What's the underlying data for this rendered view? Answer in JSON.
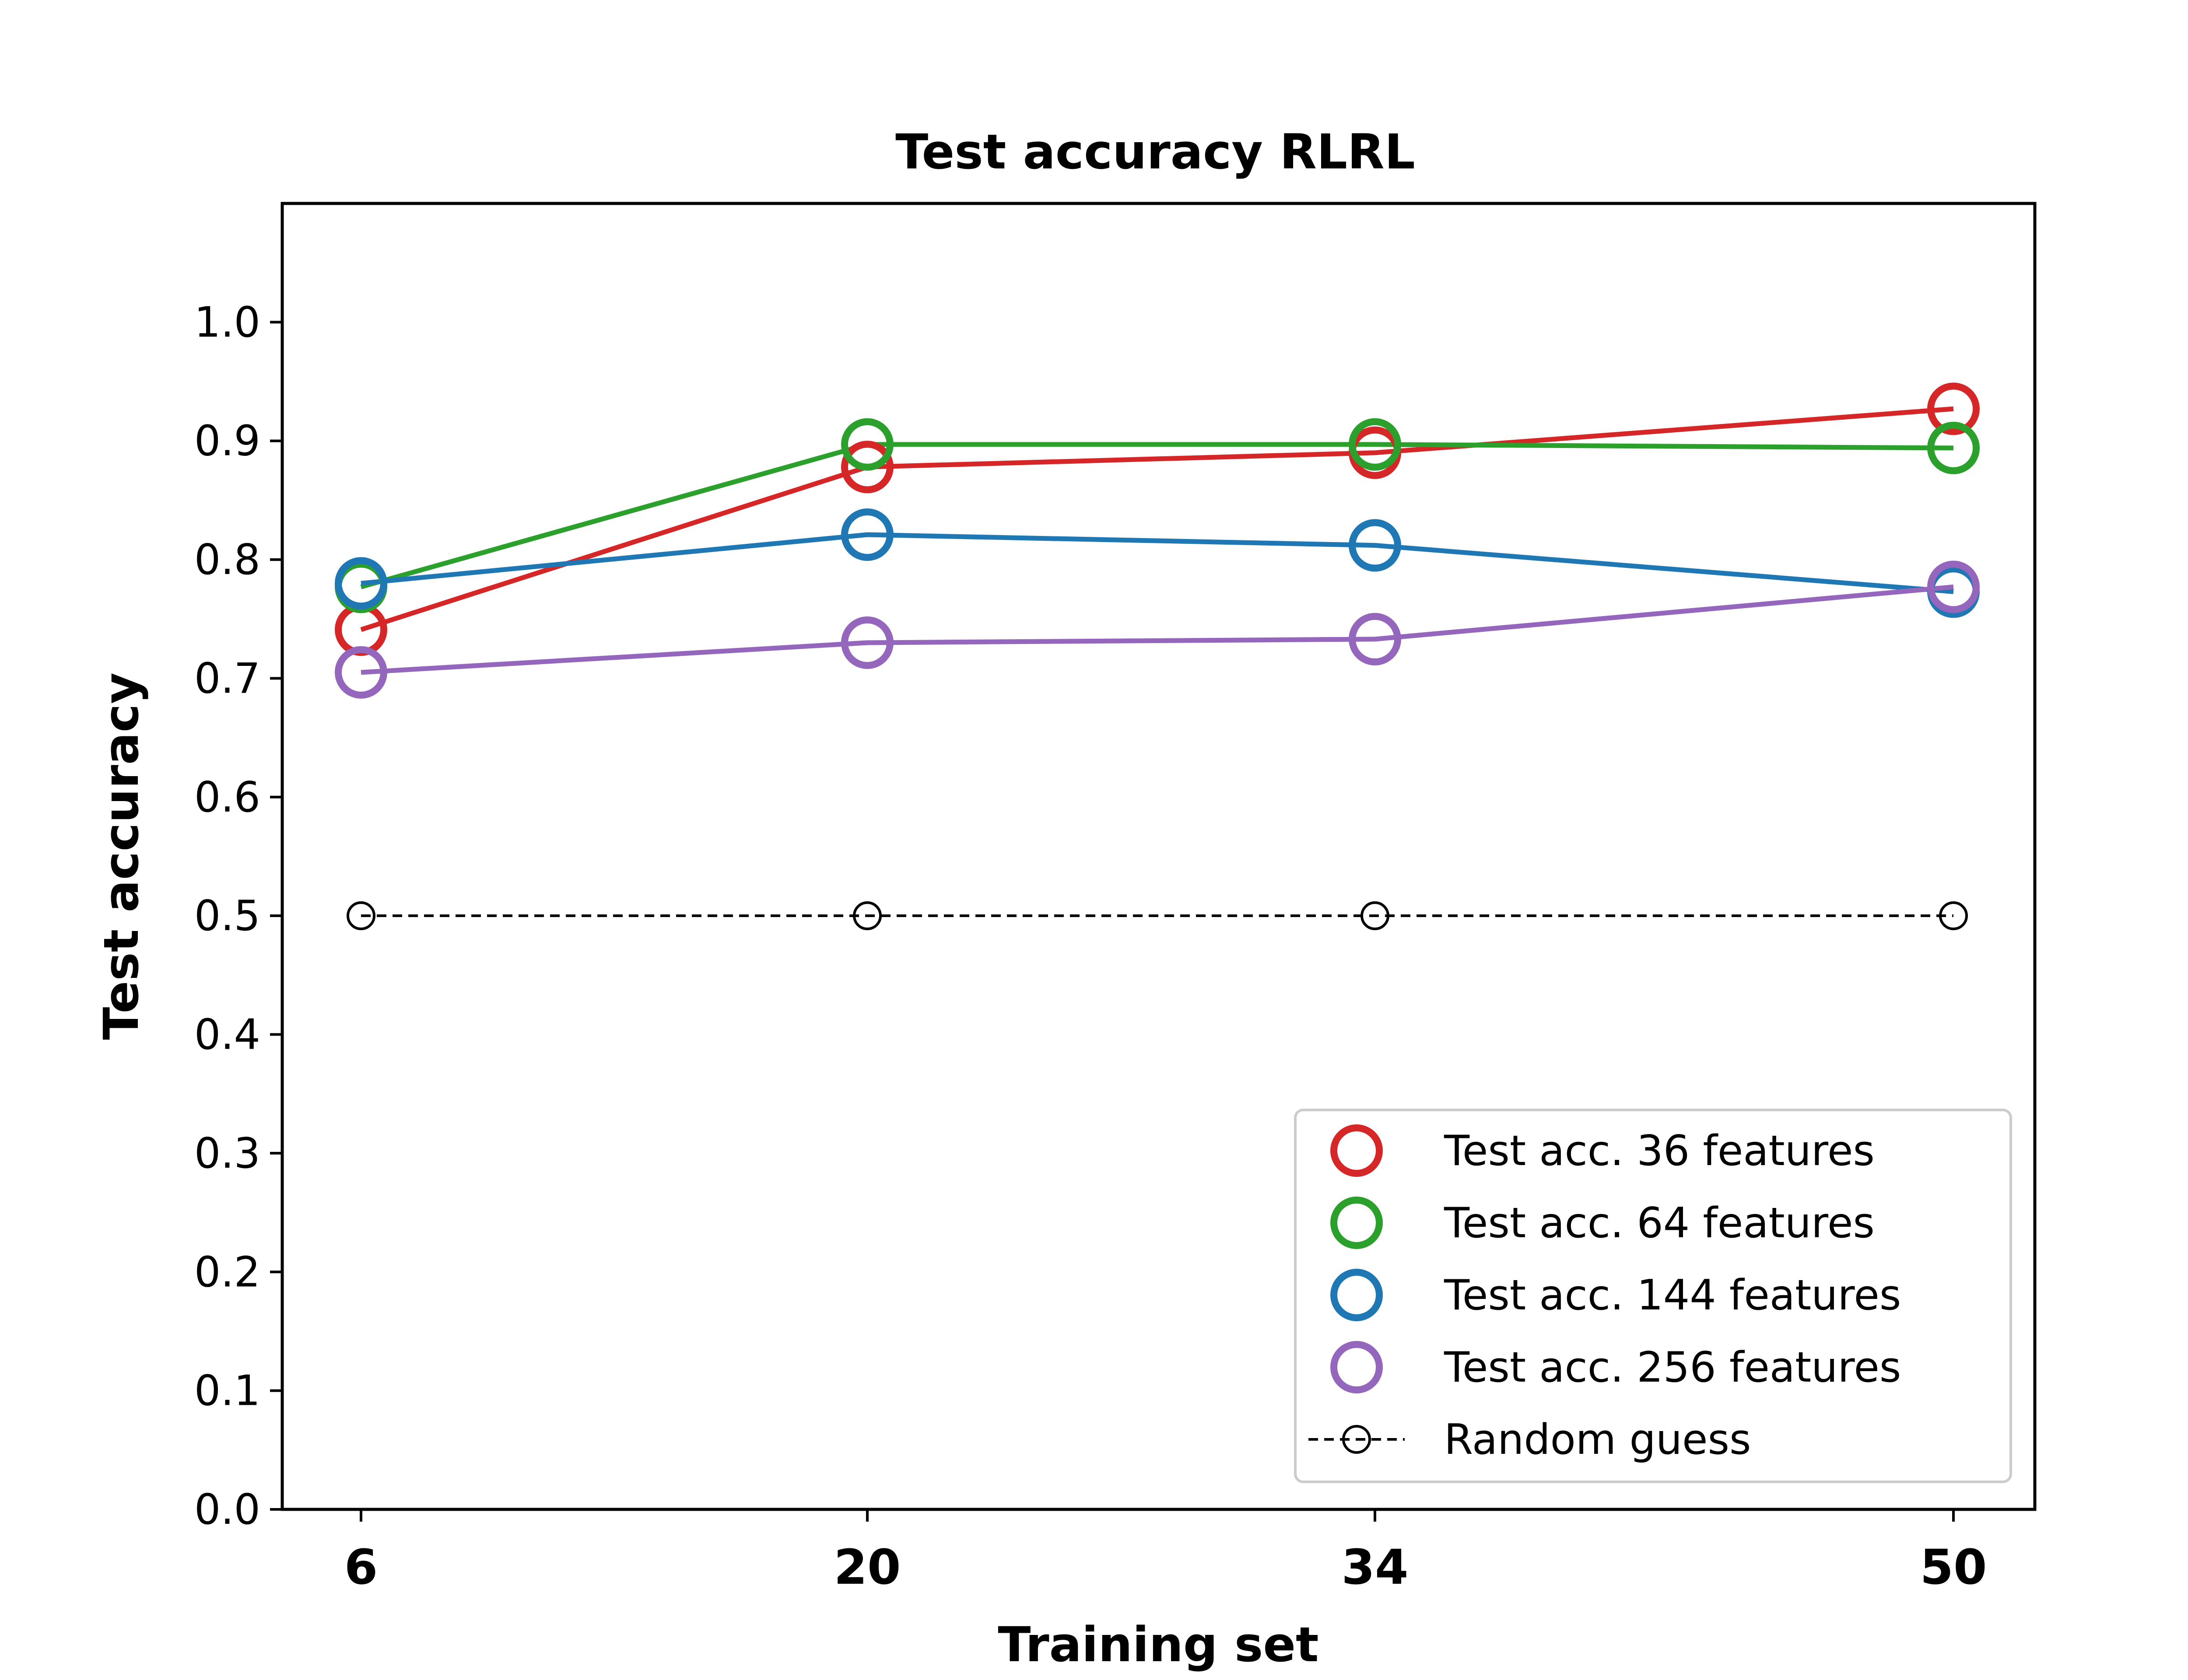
{
  "chart_data": {
    "type": "line",
    "title": "Test accuracy RLRL",
    "xlabel": "Training set",
    "ylabel": "Test accuracy",
    "x": [
      6,
      20,
      34,
      50
    ],
    "xticks": [
      "6",
      "20",
      "34",
      "50"
    ],
    "ylim": [
      0.0,
      1.1
    ],
    "yticks": [
      0.0,
      0.1,
      0.2,
      0.3,
      0.4,
      0.5,
      0.6,
      0.7,
      0.8,
      0.9,
      1.0
    ],
    "ytick_labels": [
      "0.0",
      "0.1",
      "0.2",
      "0.3",
      "0.4",
      "0.5",
      "0.6",
      "0.7",
      "0.8",
      "0.9",
      "1.0"
    ],
    "grid": false,
    "legend_position": "lower-right",
    "series": [
      {
        "name": "Test acc. 36 features",
        "color": "#d62728",
        "marker": "circle-open",
        "linestyle": "solid",
        "values": [
          0.741,
          0.878,
          0.89,
          0.927
        ]
      },
      {
        "name": "Test acc. 64 features",
        "color": "#2ca02c",
        "marker": "circle-open",
        "linestyle": "solid",
        "values": [
          0.777,
          0.897,
          0.897,
          0.894
        ]
      },
      {
        "name": "Test acc. 144 features",
        "color": "#1f77b4",
        "marker": "circle-open",
        "linestyle": "solid",
        "values": [
          0.78,
          0.821,
          0.812,
          0.773
        ]
      },
      {
        "name": "Test acc. 256 features",
        "color": "#9467bd",
        "marker": "circle-open",
        "linestyle": "solid",
        "values": [
          0.705,
          0.73,
          0.733,
          0.777
        ]
      },
      {
        "name": "Random guess",
        "color": "#000000",
        "marker": "circle-open-small",
        "linestyle": "dashed",
        "values": [
          0.5,
          0.5,
          0.5,
          0.5
        ]
      }
    ]
  }
}
